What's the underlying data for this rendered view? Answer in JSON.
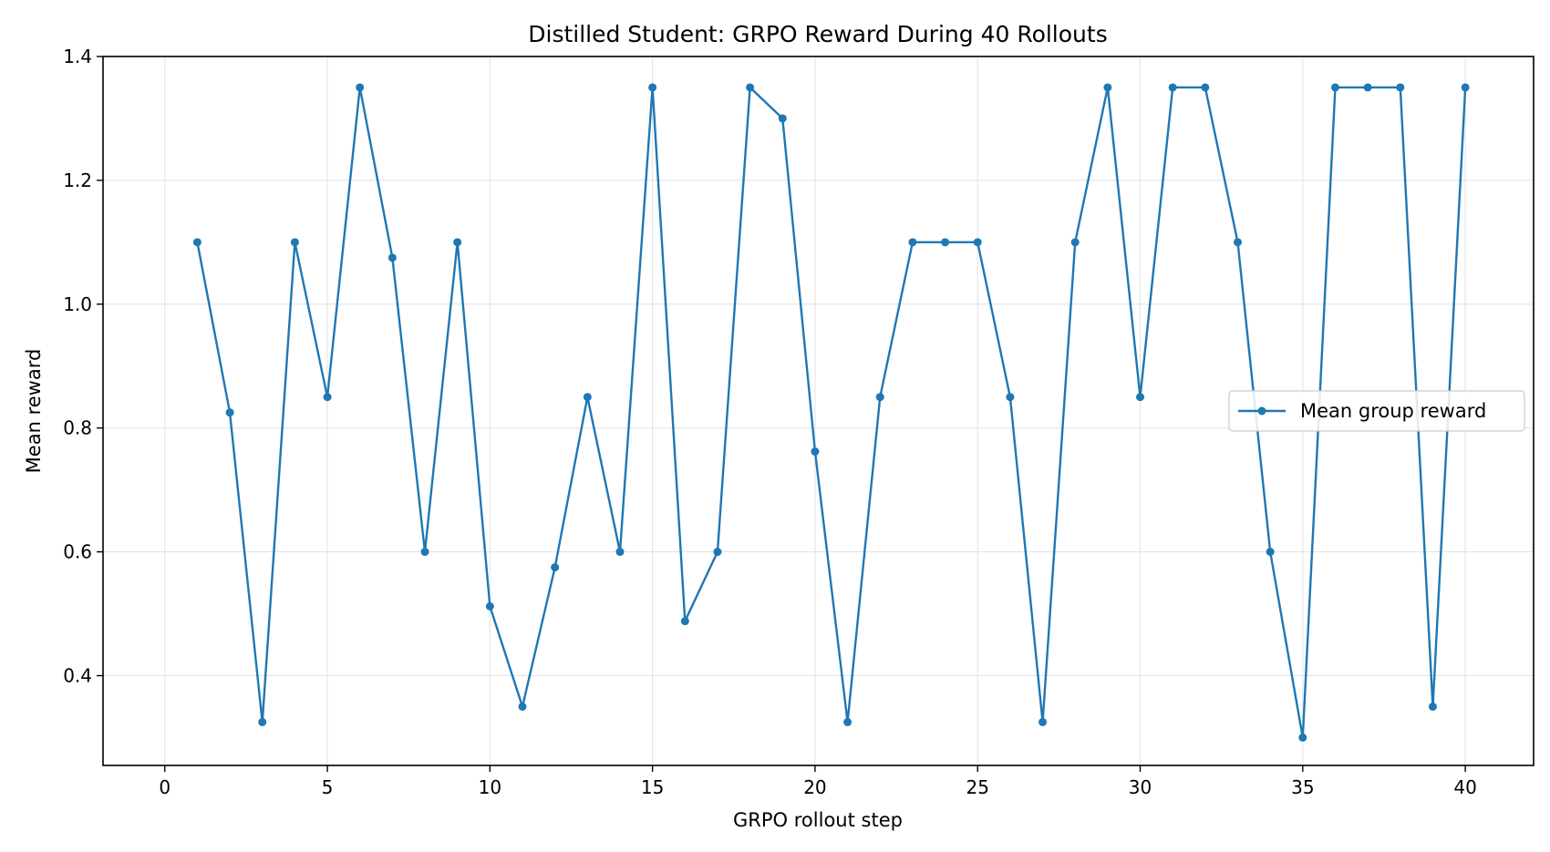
{
  "chart_data": {
    "type": "line",
    "title": "Distilled Student: GRPO Reward During 40 Rollouts",
    "xlabel": "GRPO rollout step",
    "ylabel": "Mean reward",
    "xlim": [
      -1.9,
      42.1
    ],
    "ylim": [
      0.255,
      1.4
    ],
    "xticks": [
      0,
      5,
      10,
      15,
      20,
      25,
      30,
      35,
      40
    ],
    "yticks": [
      0.4,
      0.6,
      0.8,
      1.0,
      1.2,
      1.4
    ],
    "ytick_labels": [
      "0.4",
      "0.6",
      "0.8",
      "1.0",
      "1.2",
      "1.4"
    ],
    "grid": true,
    "legend_position": "center-right",
    "series": [
      {
        "name": "Mean group reward",
        "color": "#1f77b4",
        "marker": "circle",
        "x": [
          1,
          2,
          3,
          4,
          5,
          6,
          7,
          8,
          9,
          10,
          11,
          12,
          13,
          14,
          15,
          16,
          17,
          18,
          19,
          20,
          21,
          22,
          23,
          24,
          25,
          26,
          27,
          28,
          29,
          30,
          31,
          32,
          33,
          34,
          35,
          36,
          37,
          38,
          39,
          40
        ],
        "y": [
          1.1,
          0.825,
          0.325,
          1.1,
          0.85,
          1.35,
          1.075,
          0.6,
          1.1,
          0.512,
          0.35,
          0.575,
          0.85,
          0.6,
          1.35,
          0.488,
          0.6,
          1.35,
          1.3,
          0.762,
          0.325,
          0.85,
          1.1,
          1.1,
          1.1,
          0.85,
          0.325,
          1.1,
          1.35,
          0.85,
          1.35,
          1.35,
          1.1,
          0.6,
          0.3,
          1.35,
          1.35,
          1.35,
          0.35,
          1.35
        ]
      }
    ]
  }
}
